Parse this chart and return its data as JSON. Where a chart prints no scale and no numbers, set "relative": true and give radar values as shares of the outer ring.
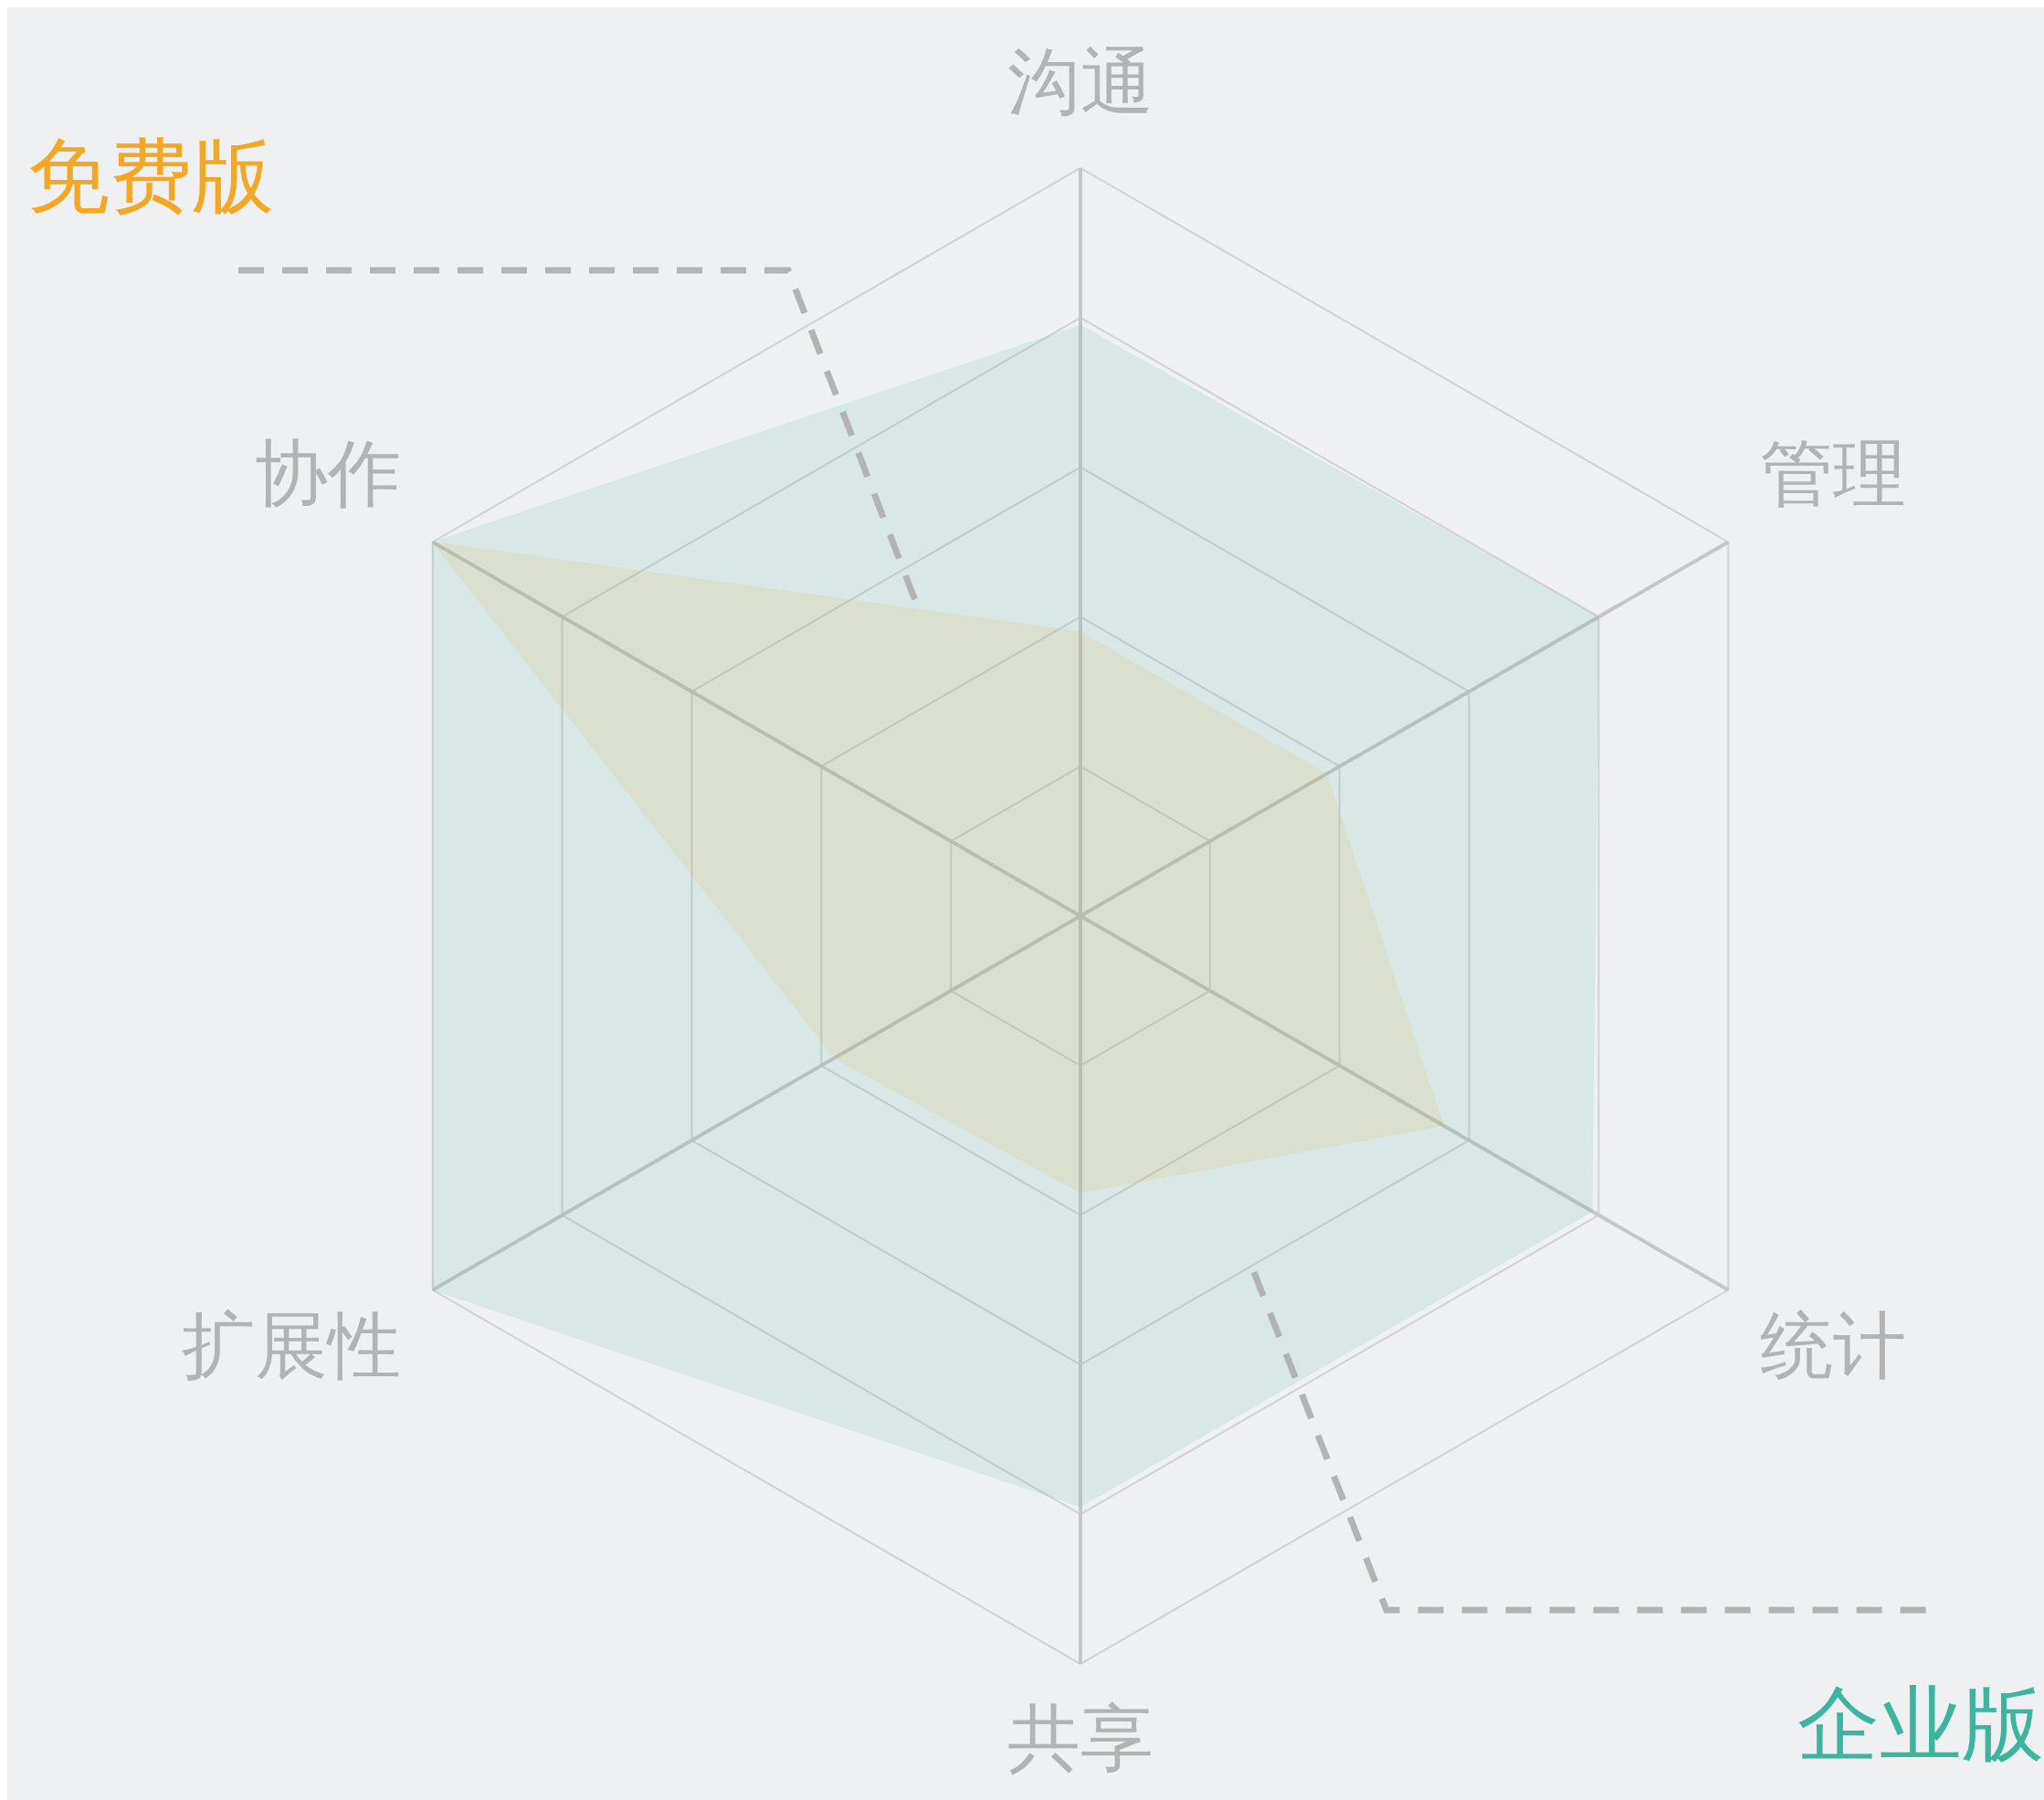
{
  "chart_data": {
    "type": "radar",
    "relative": true,
    "categories": [
      "沟通",
      "管理",
      "统计",
      "共享",
      "扩展性",
      "协作"
    ],
    "marker": "none",
    "legend": false,
    "series": [
      {
        "name": "免费版",
        "color": "#f5a623",
        "values": [
          0.38,
          0.38,
          0.56,
          0.37,
          0.38,
          1.0
        ]
      },
      {
        "name": "企业版",
        "color": "#3cb4a0",
        "values": [
          0.79,
          0.8,
          0.79,
          0.79,
          1.0,
          1.0
        ]
      }
    ]
  }
}
